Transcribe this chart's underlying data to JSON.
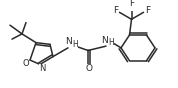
{
  "bg_color": "#ffffff",
  "line_color": "#2a2a2a",
  "lw": 1.1,
  "figsize": [
    1.78,
    0.88
  ],
  "dpi": 100,
  "xlim": [
    0,
    178
  ],
  "ylim": [
    0,
    88
  ]
}
